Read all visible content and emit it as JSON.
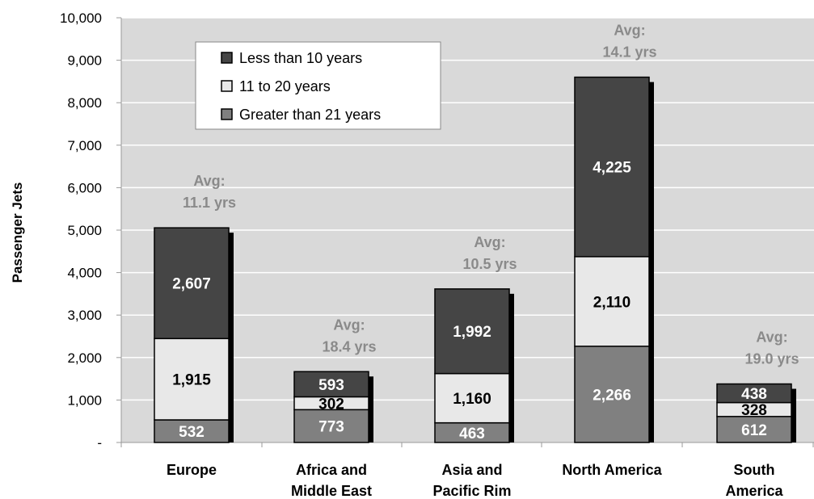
{
  "chart_data": {
    "type": "bar",
    "stacked": true,
    "ylabel": "Passenger Jets",
    "ylim": [
      0,
      10000
    ],
    "yticks": [
      {
        "value": 0,
        "label": "-"
      },
      {
        "value": 1000,
        "label": "1,000"
      },
      {
        "value": 2000,
        "label": "2,000"
      },
      {
        "value": 3000,
        "label": "3,000"
      },
      {
        "value": 4000,
        "label": "4,000"
      },
      {
        "value": 5000,
        "label": "5,000"
      },
      {
        "value": 6000,
        "label": "6,000"
      },
      {
        "value": 7000,
        "label": "7,000"
      },
      {
        "value": 8000,
        "label": "8,000"
      },
      {
        "value": 9000,
        "label": "9,000"
      },
      {
        "value": 10000,
        "label": "10,000"
      }
    ],
    "categories": [
      [
        "Europe"
      ],
      [
        "Africa and",
        "Middle East"
      ],
      [
        "Asia and",
        "Pacific Rim"
      ],
      [
        "North America"
      ],
      [
        "South",
        "America"
      ]
    ],
    "series": [
      {
        "name": "Greater than 21 years",
        "color": "#808080",
        "text_color": "#ffffff",
        "values": [
          532,
          773,
          463,
          2266,
          612
        ],
        "labels": [
          "532",
          "773",
          "463",
          "2,266",
          "612"
        ]
      },
      {
        "name": "11 to 20 years",
        "color": "#e8e8e8",
        "text_color": "#000000",
        "values": [
          1915,
          302,
          1160,
          2110,
          328
        ],
        "labels": [
          "1,915",
          "302",
          "1,160",
          "2,110",
          "328"
        ]
      },
      {
        "name": "Less than 10 years",
        "color": "#454545",
        "text_color": "#ffffff",
        "values": [
          2607,
          593,
          1992,
          4225,
          438
        ],
        "labels": [
          "2,607",
          "593",
          "1,992",
          "4,225",
          "438"
        ]
      }
    ],
    "legend_order": [
      2,
      1,
      0
    ],
    "annotations": [
      {
        "line1": "Avg:",
        "line2": "11.1 yrs"
      },
      {
        "line1": "Avg:",
        "line2": "18.4 yrs"
      },
      {
        "line1": "Avg:",
        "line2": "10.5 yrs"
      },
      {
        "line1": "Avg:",
        "line2": "14.1 yrs"
      },
      {
        "line1": "Avg:",
        "line2": "19.0 yrs"
      }
    ],
    "legend_position": "top-left",
    "grid": true,
    "plot_background": "#d9d9d9",
    "grid_color": "#ffffff"
  }
}
